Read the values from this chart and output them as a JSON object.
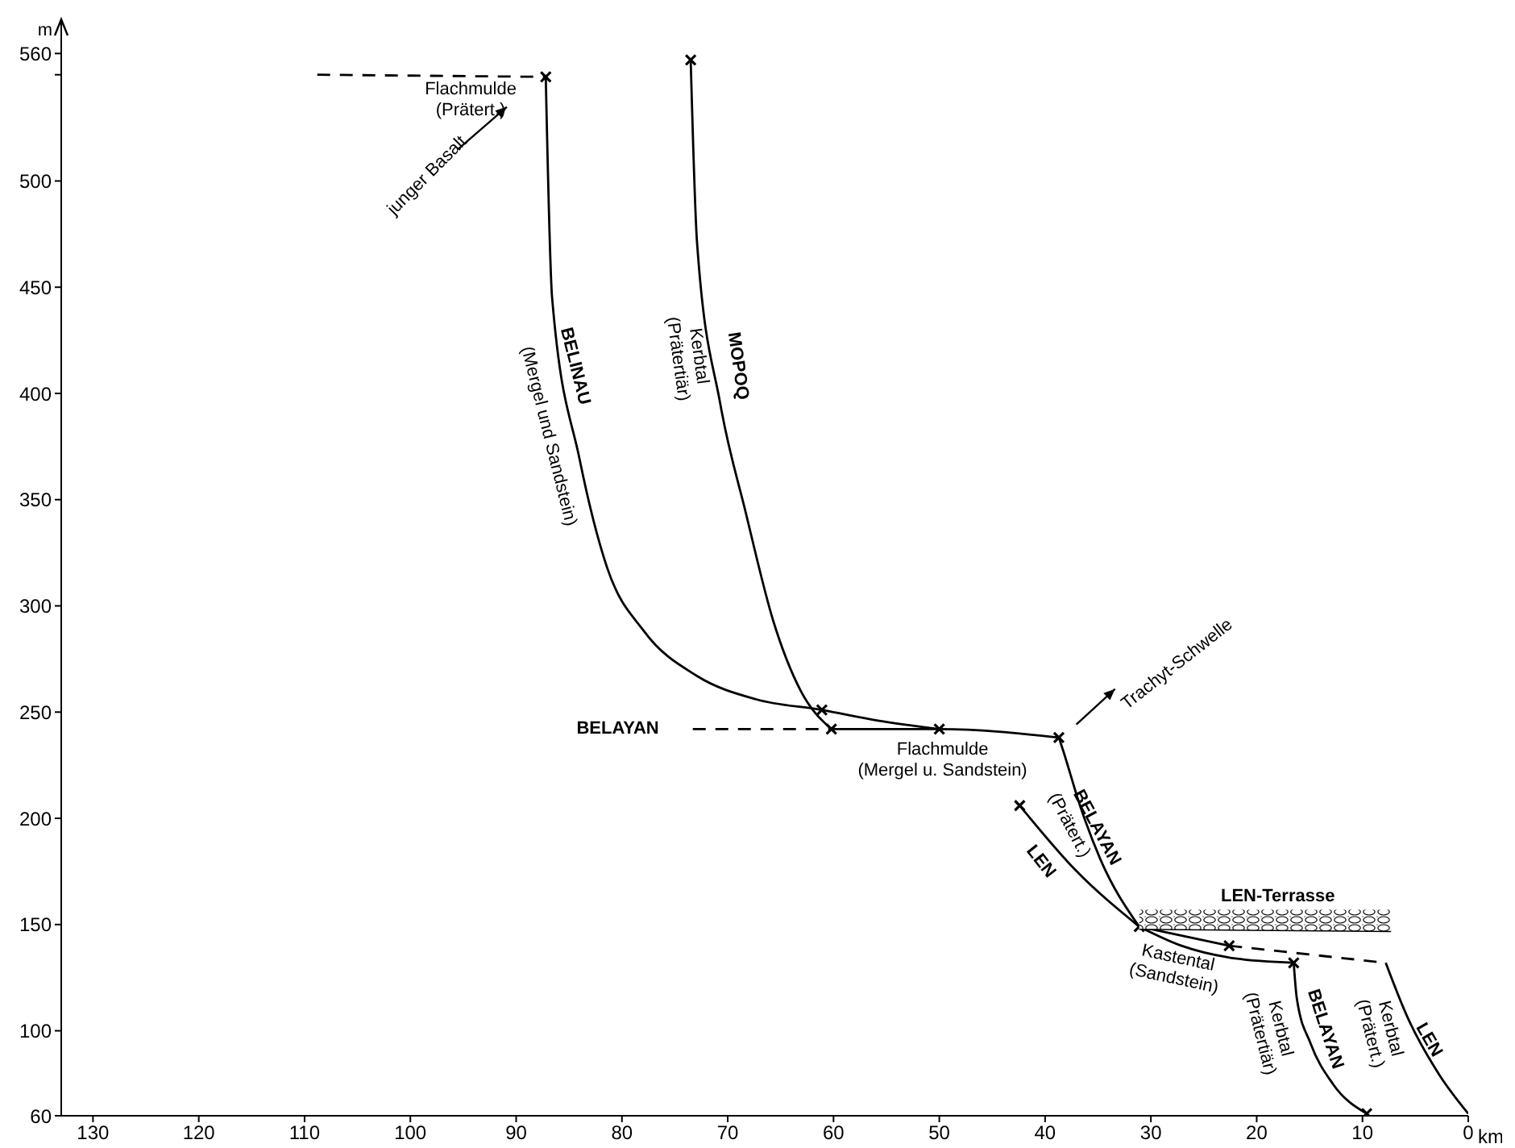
{
  "chart_data": {
    "type": "line",
    "ylabel": "m",
    "xlabel": "km",
    "xlim": [
      133,
      0
    ],
    "xticks": [
      130,
      120,
      110,
      100,
      90,
      80,
      70,
      60,
      50,
      40,
      30,
      20,
      10,
      0
    ],
    "ylim": [
      60,
      570
    ],
    "yticks": [
      60,
      100,
      150,
      200,
      250,
      300,
      350,
      400,
      450,
      500,
      {
        "value": 550,
        "label": null
      },
      560
    ],
    "series": [
      {
        "color": "#000000",
        "line_style": "dashed",
        "x": [
          108.8,
          87.2
        ],
        "values": [
          550,
          549
        ]
      },
      {
        "color": "#000000",
        "x": [
          87.2,
          86.6,
          84.0,
          81.4,
          77.9,
          72.9,
          67.3,
          61.1,
          55.8,
          50
        ],
        "values": [
          549,
          445,
          369,
          318,
          288,
          267,
          256,
          251,
          246,
          242
        ]
      },
      {
        "color": "#000000",
        "x": [
          73.5,
          72.9,
          70.7,
          68.3,
          65.7,
          63.1,
          60.2
        ],
        "values": [
          557,
          471,
          395,
          344,
          293,
          260,
          242
        ]
      },
      {
        "color": "#000000",
        "line_style": "dashed",
        "x": [
          73.3,
          60.2
        ],
        "values": [
          242,
          242
        ]
      },
      {
        "color": "#000000",
        "x": [
          60.2,
          50,
          38.7
        ],
        "values": [
          242,
          242,
          238
        ]
      },
      {
        "color": "#000000",
        "x": [
          38.7,
          38.3,
          36.7,
          34.8,
          31.1
        ],
        "values": [
          238,
          232,
          206,
          181,
          149
        ]
      },
      {
        "color": "#000000",
        "x": [
          31.1,
          27.1,
          22,
          16.5
        ],
        "values": [
          149,
          140,
          134,
          132
        ]
      },
      {
        "color": "#000000",
        "x": [
          16.5,
          16.2,
          14.9,
          12.8,
          9.6
        ],
        "values": [
          132,
          115,
          94,
          75,
          61
        ]
      },
      {
        "color": "#000000",
        "x": [
          42.4,
          37.2,
          31.1
        ],
        "values": [
          206,
          176,
          149
        ]
      },
      {
        "color": "#000000",
        "x": [
          31.1,
          22.6
        ],
        "values": [
          149,
          140
        ]
      },
      {
        "color": "#000000",
        "line_style": "dashed",
        "x": [
          22.6,
          7.8
        ],
        "values": [
          140,
          132
        ]
      },
      {
        "color": "#000000",
        "x": [
          7.8,
          5.8,
          2.7,
          0
        ],
        "values": [
          132,
          107,
          79,
          61
        ]
      },
      {
        "color": "#000000",
        "x": [
          31.1,
          7.3
        ],
        "values": [
          148,
          147
        ],
        "lower": [
          148,
          147
        ],
        "upper": [
          157,
          157
        ]
      },
      {
        "type": "scatter",
        "color": "#000000",
        "marker": "cross",
        "x": [
          87.2,
          73.5,
          61.1,
          60.2,
          50,
          38.7,
          31.1,
          16.5,
          9.6,
          42.4,
          22.6
        ],
        "values": [
          549,
          557,
          251,
          242,
          242,
          238,
          149,
          132,
          61,
          206,
          140
        ]
      }
    ],
    "annotations": [
      "Flachmulde\n(Prätert.)",
      "junger Basalt",
      "BELINAU",
      "(Mergel und Sandstein)",
      "MOPOQ",
      "Kerbtal\n(Prätertiär)",
      "BELAYAN",
      "Flachmulde\n(Mergel u. Sandstein)",
      "Trachyt-Schwelle",
      "BELAYAN",
      "(Prätert.)",
      "LEN",
      "LEN-Terrasse",
      "Kastental\n(Sandstein)",
      "BELAYAN",
      "Kerbtal\n(Prätertiär)",
      "LEN",
      "Kerbtal\n(Prätert.)"
    ]
  }
}
